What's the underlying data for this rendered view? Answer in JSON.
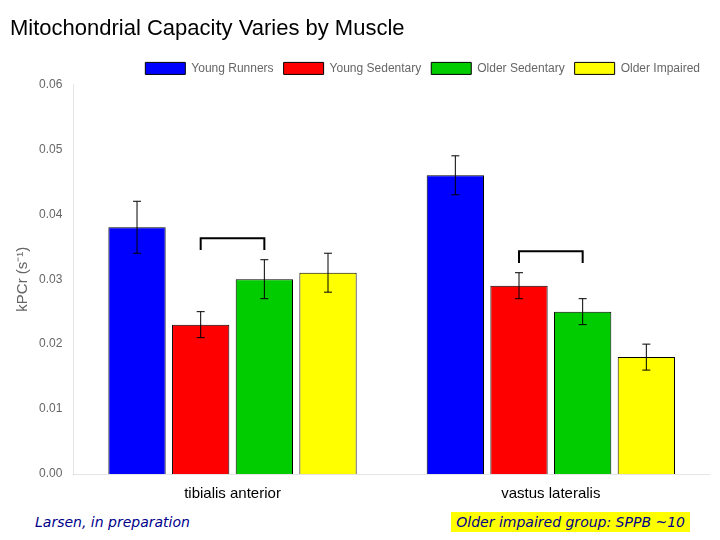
{
  "chart_data": {
    "type": "bar",
    "title": "Mitochondrial Capacity Varies by Muscle",
    "y_label": "kPCr (s⁻¹)",
    "categories": [
      "tibialis anterior",
      "vastus lateralis"
    ],
    "series": [
      {
        "name": "Young Runners",
        "color": "#0000FF",
        "values": [
          0.038,
          0.046
        ],
        "errors": [
          0.004,
          0.003
        ]
      },
      {
        "name": "Young Sedentary",
        "color": "#FF0000",
        "values": [
          0.023,
          0.029
        ],
        "errors": [
          0.002,
          0.002
        ]
      },
      {
        "name": "Older Sedentary",
        "color": "#00CC00",
        "values": [
          0.03,
          0.025
        ],
        "errors": [
          0.003,
          0.002
        ]
      },
      {
        "name": "Older Impaired",
        "color": "#FFFF00",
        "values": [
          0.031,
          0.018
        ],
        "errors": [
          0.003,
          0.002
        ]
      }
    ],
    "brackets": [
      {
        "group": "tibialis anterior",
        "series": [
          "Young Sedentary",
          "Older Sedentary"
        ],
        "y_bottom": 0.0345,
        "y_top": 0.0363
      },
      {
        "group": "vastus lateralis",
        "series": [
          "Young Sedentary",
          "Older Sedentary"
        ],
        "y_bottom": 0.0325,
        "y_top": 0.0343
      }
    ],
    "annotations": [
      {
        "text": "Larsen, in preparation",
        "color": "#00008B"
      },
      {
        "text": "Older impaired group:  SPPB ~10",
        "color": "#00008B",
        "background": "#FFFF00"
      }
    ],
    "ylim": [
      0,
      0.06
    ],
    "yticks": [
      {
        "value": 0,
        "label": "0.00"
      },
      0.01,
      0.02,
      0.03,
      0.04,
      0.05,
      0.06
    ],
    "grid": false,
    "legend": "upper right"
  }
}
